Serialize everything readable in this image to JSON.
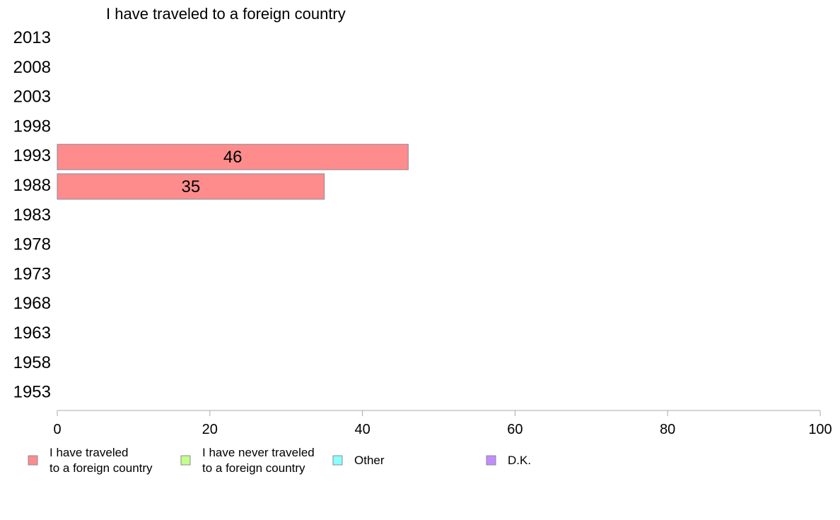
{
  "chart_data": {
    "type": "bar",
    "orientation": "horizontal",
    "stacked": true,
    "title": "I have traveled to a foreign country",
    "categories": [
      "2013",
      "2008",
      "2003",
      "1998",
      "1993",
      "1988",
      "1983",
      "1978",
      "1973",
      "1968",
      "1963",
      "1958",
      "1953"
    ],
    "series": [
      {
        "name": "I have traveled to a foreign country",
        "name_lines": [
          "I have traveled",
          "to a foreign country"
        ],
        "color": "#ff8c8c",
        "values": [
          null,
          null,
          null,
          null,
          46,
          35,
          null,
          null,
          null,
          null,
          null,
          null,
          null
        ]
      },
      {
        "name": "I have never traveled to a foreign country",
        "name_lines": [
          "I have never traveled",
          "to a foreign country"
        ],
        "color": "#c4ff8c",
        "values": [
          null,
          null,
          null,
          null,
          null,
          null,
          null,
          null,
          null,
          null,
          null,
          null,
          null
        ]
      },
      {
        "name": "Other",
        "name_lines": [
          "Other"
        ],
        "color": "#8cffff",
        "values": [
          null,
          null,
          null,
          null,
          null,
          null,
          null,
          null,
          null,
          null,
          null,
          null,
          null
        ]
      },
      {
        "name": "D.K.",
        "name_lines": [
          "D.K."
        ],
        "color": "#c38cff",
        "values": [
          null,
          null,
          null,
          null,
          null,
          null,
          null,
          null,
          null,
          null,
          null,
          null,
          null
        ]
      }
    ],
    "xlim": [
      0,
      100
    ],
    "xticks": [
      0,
      20,
      40,
      60,
      80,
      100
    ],
    "grid": false,
    "legend_position": "bottom"
  }
}
